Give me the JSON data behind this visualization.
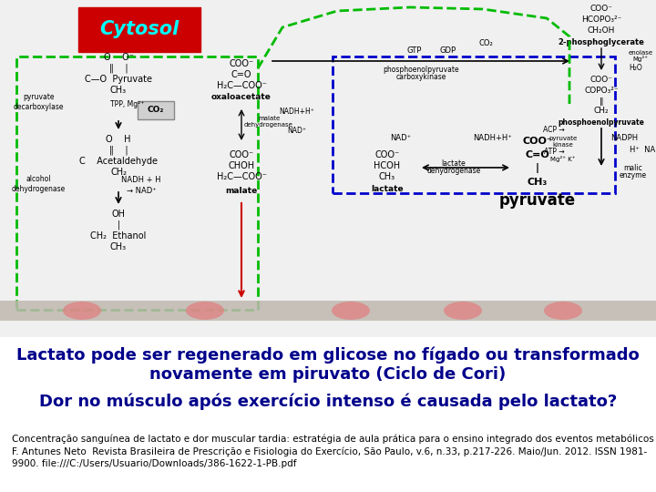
{
  "bg_color": "#ffffff",
  "image_bg": "#d4d4d4",
  "title_line1": "Lactato pode ser regenerado em glicose no fígado ou transformado",
  "title_line2": "novamente em piruvato (Ciclo de Cori)",
  "subtitle": "Dor no músculo após exercício intenso é causada pelo lactato?",
  "caption_line1": "Concentração sanguínea de lactato e dor muscular tardia: estratégia de aula prática para o ensino integrado dos eventos metabólicos  J. M.",
  "caption_line2": "F. Antunes Neto  Revista Brasileira de Prescrição e Fisiologia do Exercício, São Paulo, v.6, n.33, p.217-226. Maio/Jun. 2012. ISSN 1981-",
  "caption_line3": "9900. file:///C:/Users/Usuario/Downloads/386-1622-1-PB.pdf",
  "title_color": "#00008B",
  "subtitle_color": "#00008B",
  "caption_color": "#000000",
  "title_fontsize": 13.0,
  "subtitle_fontsize": 13.0,
  "caption_fontsize": 7.5
}
